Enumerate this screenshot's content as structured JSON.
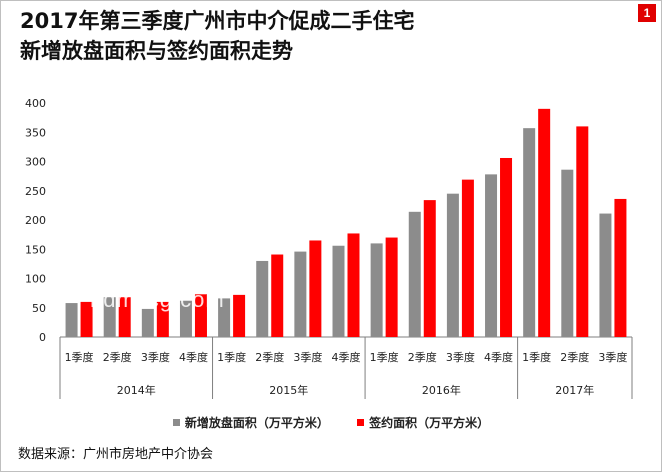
{
  "title": {
    "line1": "2017年第三季度广州市中介促成二手住宅",
    "line2": "新增放盘面积与签约面积走势"
  },
  "badge": "1",
  "watermark": "hdmxcg.com",
  "source": "数据来源：广州市房地产中介协会",
  "colors": {
    "new_listing": "#8c8c8c",
    "signed": "#ff0000"
  },
  "chart_data": {
    "type": "bar",
    "title": "2017年第三季度广州市中介促成二手住宅新增放盘面积与签约面积走势",
    "xlabel": "",
    "ylabel": "",
    "ylim": [
      0,
      400
    ],
    "yticks": [
      0,
      50,
      100,
      150,
      200,
      250,
      300,
      350,
      400
    ],
    "grid": false,
    "legend": "bottom",
    "categories": [
      "1季度",
      "2季度",
      "3季度",
      "4季度",
      "1季度",
      "2季度",
      "3季度",
      "4季度",
      "1季度",
      "2季度",
      "3季度",
      "4季度",
      "1季度",
      "2季度",
      "3季度"
    ],
    "groups": [
      {
        "label": "2014年",
        "count": 4
      },
      {
        "label": "2015年",
        "count": 4
      },
      {
        "label": "2016年",
        "count": 4
      },
      {
        "label": "2017年",
        "count": 3
      }
    ],
    "series": [
      {
        "name": "新增放盘面积（万平方米）",
        "values": [
          58,
          68,
          48,
          62,
          66,
          130,
          146,
          156,
          160,
          214,
          245,
          278,
          357,
          286,
          211
        ]
      },
      {
        "name": "签约面积（万平方米）",
        "values": [
          60,
          68,
          60,
          73,
          72,
          141,
          165,
          177,
          170,
          234,
          269,
          306,
          390,
          360,
          236
        ]
      }
    ]
  }
}
